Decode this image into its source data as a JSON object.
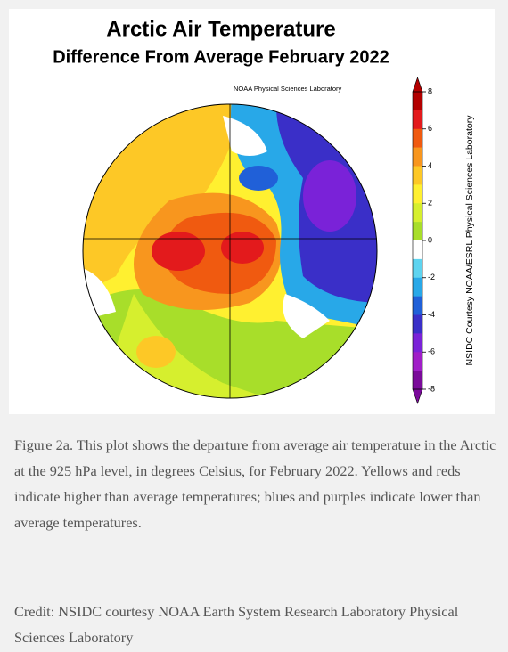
{
  "header": {
    "title": "Arctic Air Temperature",
    "subtitle": "Difference From Average February 2022"
  },
  "map": {
    "source_label": "NOAA Physical Sciences Laboratory",
    "colorbar": {
      "ticks": [
        8,
        6,
        4,
        2,
        0,
        -2,
        -4,
        -6,
        -8
      ],
      "colors": [
        "#b30000",
        "#e31a1c",
        "#f05a10",
        "#f8961e",
        "#fdc826",
        "#fff030",
        "#d6ef2e",
        "#a8de2a",
        "#ffffff",
        "#5ed4f0",
        "#28a8e8",
        "#2060d8",
        "#3a2fc8",
        "#7a22d8",
        "#a01ec8",
        "#7a0a9a"
      ],
      "side_label": "NSIDC Courtesy NOAA/ESRL Physical Sciences Laboratory"
    }
  },
  "caption": "Figure 2a. This plot shows the departure from average air temperature in the Arctic at the 925 hPa level, in degrees Celsius, for February 2022. Yellows and reds indicate higher than average temperatures; blues and purples indicate lower than average temperatures.",
  "credit": "Credit: NSIDC courtesy NOAA Earth System Research Laboratory Physical Sciences Laboratory"
}
